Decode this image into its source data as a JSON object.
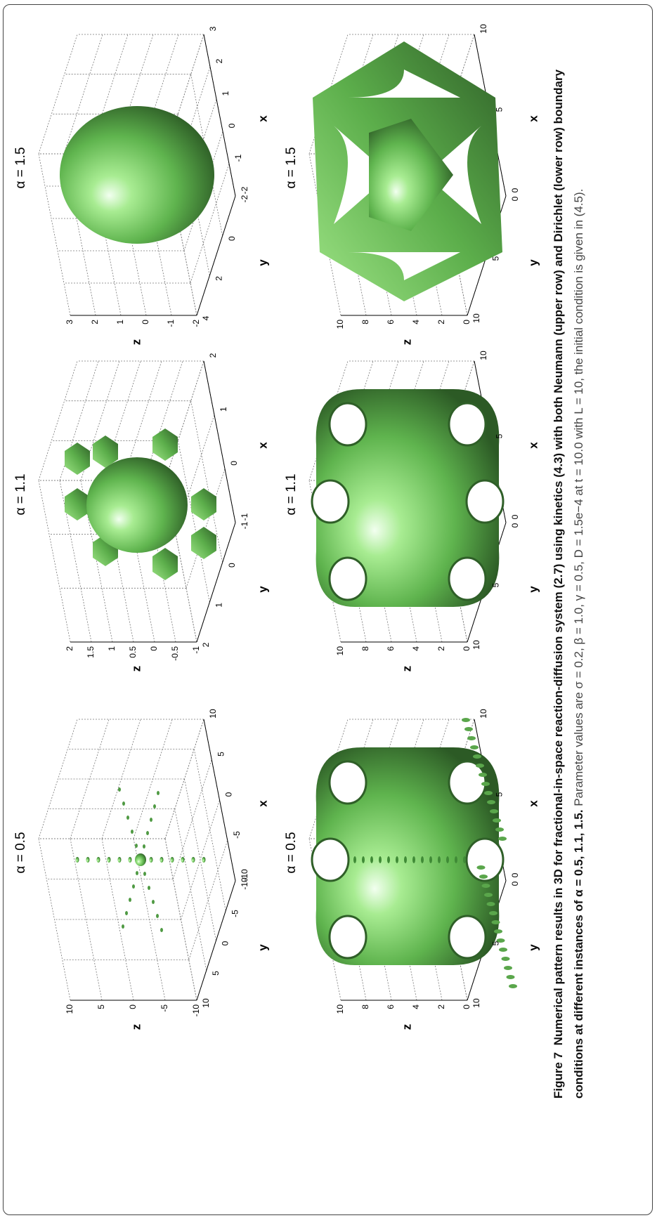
{
  "panels": [
    {
      "title": "α = 0.5",
      "x_label": "x",
      "y_label": "y",
      "z_label": "z",
      "xticks": [
        "-10",
        "-5",
        "0",
        "5",
        "10"
      ],
      "yticks": [
        "10",
        "5",
        "0",
        "-5",
        "-10"
      ],
      "zticks": [
        "10",
        "5",
        "0",
        "-5",
        "-10"
      ]
    },
    {
      "title": "α = 1.1",
      "x_label": "x",
      "y_label": "y",
      "z_label": "z",
      "xticks": [
        "-1",
        "0",
        "1",
        "2"
      ],
      "yticks": [
        "2",
        "1",
        "0",
        "-1"
      ],
      "zticks": [
        "2",
        "1.5",
        "1",
        "0.5",
        "0",
        "-0.5",
        "-1"
      ]
    },
    {
      "title": "α = 1.5",
      "x_label": "x",
      "y_label": "y",
      "z_label": "z",
      "xticks": [
        "-2",
        "-1",
        "0",
        "1",
        "2",
        "3"
      ],
      "yticks": [
        "4",
        "2",
        "0",
        "-2"
      ],
      "zticks": [
        "3",
        "2",
        "1",
        "0",
        "-1",
        "-2"
      ]
    },
    {
      "title": "α = 0.5",
      "x_label": "x",
      "y_label": "y",
      "z_label": "z",
      "xticks": [
        "0",
        "5",
        "10"
      ],
      "yticks": [
        "10",
        "5",
        "0"
      ],
      "zticks": [
        "10",
        "8",
        "6",
        "4",
        "2",
        "0"
      ]
    },
    {
      "title": "α = 1.1",
      "x_label": "x",
      "y_label": "y",
      "z_label": "z",
      "xticks": [
        "0",
        "5",
        "10"
      ],
      "yticks": [
        "10",
        "5",
        "0"
      ],
      "zticks": [
        "10",
        "8",
        "6",
        "4",
        "2",
        "0"
      ]
    },
    {
      "title": "α = 1.5",
      "x_label": "x",
      "y_label": "y",
      "z_label": "z",
      "xticks": [
        "0",
        "5",
        "10"
      ],
      "yticks": [
        "10",
        "5",
        "0"
      ],
      "zticks": [
        "10",
        "8",
        "6",
        "4",
        "2",
        "0"
      ]
    }
  ],
  "caption": {
    "label": "Figure 7",
    "bold_text": "Numerical pattern results in 3D for fractional-in-space reaction-diffusion system (2.7) using kinetics (4.3) with both Neumann (upper row) and Dirichlet (lower row) boundary conditions at different instances of α = 0.5, 1.1, 1.5.",
    "text": "Parameter values are σ = 0.2, β = 1.0, γ = 0.5, D = 1.5e−4 at t = 10.0 with L = 10, the initial condition is given in (4.5)."
  }
}
